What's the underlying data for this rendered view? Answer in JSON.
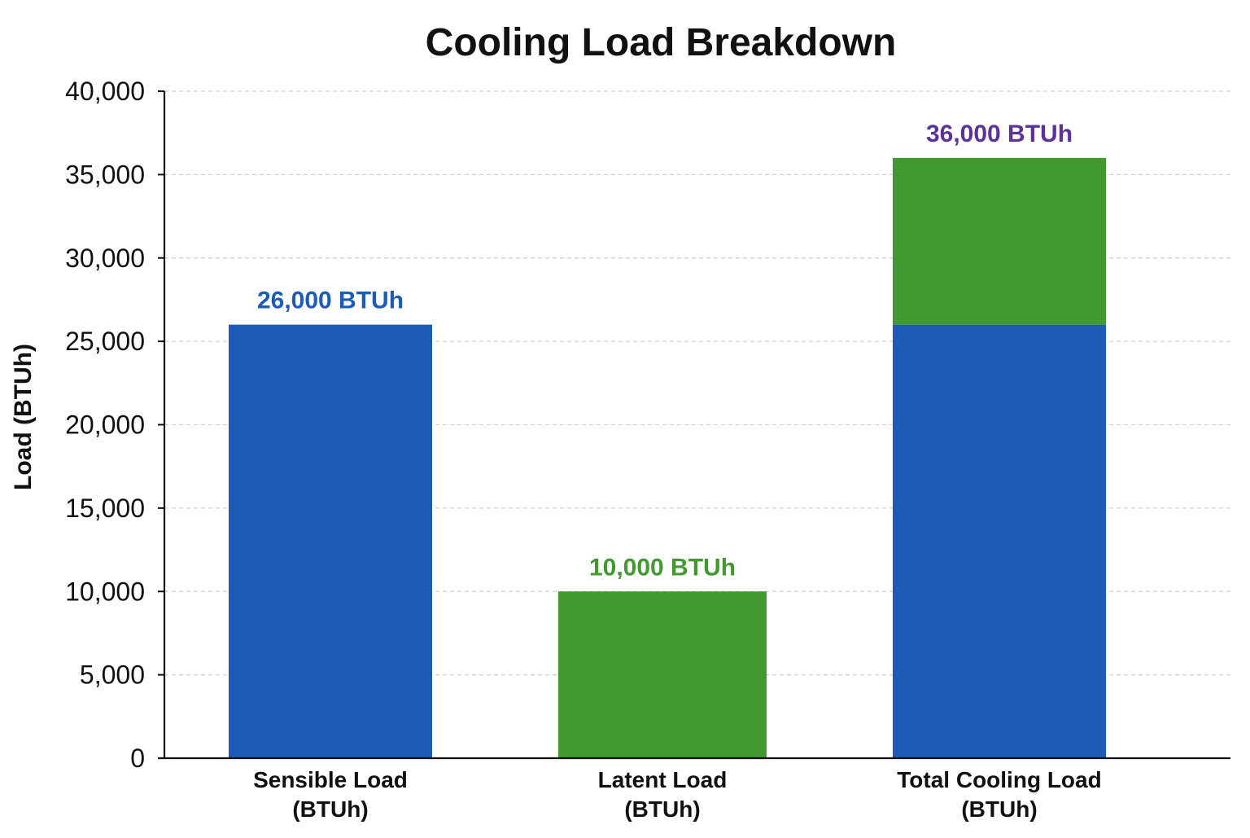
{
  "chart_data": {
    "type": "bar",
    "title": "Cooling Load Breakdown",
    "xlabel": "",
    "ylabel": "Load (BTUh)",
    "ylim": [
      0,
      40000
    ],
    "yticks": [
      0,
      5000,
      10000,
      15000,
      20000,
      25000,
      30000,
      35000,
      40000
    ],
    "ytick_labels": [
      "0",
      "5,000",
      "10,000",
      "15,000",
      "20,000",
      "25,000",
      "30,000",
      "35,000",
      "40,000"
    ],
    "grid": true,
    "categories": [
      [
        "Sensible Load",
        "(BTUh)"
      ],
      [
        "Latent Load",
        "(BTUh)"
      ],
      [
        "Total Cooling Load",
        "(BTUh)"
      ]
    ],
    "bars": [
      {
        "segments": [
          {
            "value": 26000,
            "color": "#1d5cb6"
          }
        ],
        "label": "26,000 BTUh",
        "label_color": "#1d5cb6"
      },
      {
        "segments": [
          {
            "value": 10000,
            "color": "#41992f"
          }
        ],
        "label": "10,000 BTUh",
        "label_color": "#41992f"
      },
      {
        "segments": [
          {
            "value": 26000,
            "color": "#1d5cb6"
          },
          {
            "value": 10000,
            "color": "#41992f"
          }
        ],
        "label": "36,000 BTUh",
        "label_color": "#5b3297"
      }
    ],
    "colors": {
      "sensible": "#1d5cb6",
      "latent": "#41992f",
      "total_label": "#5b3297",
      "axis": "#111111",
      "grid": "#d0d4d8"
    }
  }
}
